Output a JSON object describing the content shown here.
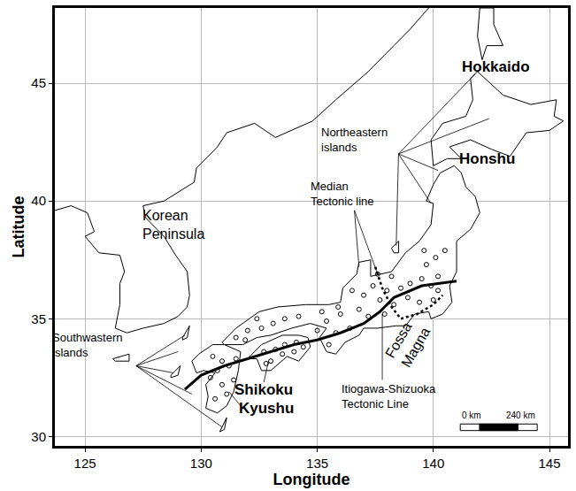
{
  "chart_data": {
    "type": "map",
    "x_label": "Longitude",
    "y_label": "Latitude",
    "xlim": [
      123.7,
      145.8
    ],
    "ylim": [
      29.6,
      48.2
    ],
    "xticks": [
      125,
      130,
      135,
      140,
      145
    ],
    "yticks": [
      30,
      35,
      40,
      45
    ],
    "grid": true,
    "mainland_coast": [
      {
        "lon": [
          123.7,
          124.4,
          125.1,
          125.4,
          125.0,
          125.6,
          126.5,
          126.7,
          126.5,
          126.5,
          126.3,
          126.8,
          127.5,
          128.4,
          129.0,
          129.4,
          129.5,
          129.4,
          128.9,
          128.4,
          127.6,
          127.5,
          128.4,
          129.7,
          129.8,
          130.7,
          131.1,
          132.3,
          133.2,
          134.8,
          135.8,
          137.2,
          138.3,
          139.0,
          139.8
        ],
        "lat": [
          39.6,
          39.8,
          39.5,
          38.7,
          38.5,
          37.8,
          37.7,
          37.0,
          36.5,
          35.6,
          34.6,
          34.4,
          34.6,
          34.8,
          35.1,
          35.5,
          36.0,
          37.0,
          37.7,
          38.5,
          39.3,
          39.8,
          40.0,
          40.8,
          41.4,
          42.3,
          42.9,
          43.3,
          42.7,
          43.4,
          44.3,
          45.5,
          46.6,
          47.3,
          48.2
        ]
      }
    ],
    "islands": [
      {
        "lon": [
          130.9,
          131.5,
          132.5,
          133.3,
          134.5,
          135.5,
          136.0,
          136.1,
          136.7,
          136.8,
          137.3,
          137.3,
          138.2,
          138.8,
          139.4,
          139.9,
          140.0,
          139.7,
          140.0,
          140.3,
          140.9,
          141.2,
          141.4,
          141.8,
          142.0,
          141.6,
          141.0,
          141.0,
          140.7,
          140.8,
          140.4,
          139.9,
          139.8,
          139.2,
          138.8,
          138.4,
          137.6,
          137.0,
          136.8,
          136.2,
          135.8,
          135.4,
          135.1,
          135.4,
          134.7,
          133.9,
          133.0,
          132.4,
          131.8,
          131.0,
          130.9
        ],
        "lat": [
          34.0,
          34.6,
          35.3,
          35.5,
          35.6,
          35.6,
          35.7,
          36.3,
          36.9,
          37.4,
          37.5,
          36.8,
          37.0,
          37.8,
          38.3,
          39.0,
          39.9,
          40.0,
          40.7,
          41.2,
          41.5,
          41.2,
          40.6,
          40.2,
          39.5,
          38.8,
          38.3,
          37.0,
          36.4,
          35.7,
          35.2,
          35.0,
          35.3,
          35.2,
          34.7,
          34.7,
          34.6,
          34.6,
          34.3,
          34.0,
          33.5,
          33.6,
          34.2,
          34.6,
          34.8,
          34.6,
          34.3,
          34.2,
          33.9,
          33.9,
          34.0
        ]
      },
      {
        "lon": [
          129.9,
          130.5,
          131.0,
          131.7,
          131.6,
          131.4,
          131.1,
          130.7,
          130.2,
          130.3,
          130.2,
          130.6,
          130.1,
          129.8,
          129.6,
          129.9
        ],
        "lat": [
          33.5,
          33.9,
          33.9,
          33.6,
          32.8,
          31.9,
          31.3,
          31.0,
          31.2,
          31.7,
          32.2,
          32.7,
          32.8,
          32.7,
          33.2,
          33.5
        ]
      },
      {
        "lon": [
          132.6,
          133.5,
          134.2,
          134.6,
          134.7,
          134.2,
          133.7,
          133.0,
          132.6,
          132.4,
          132.0,
          132.6
        ],
        "lat": [
          33.9,
          34.3,
          34.3,
          34.2,
          33.8,
          33.2,
          33.4,
          32.8,
          32.8,
          33.3,
          33.3,
          33.9
        ]
      },
      {
        "lon": [
          140.0,
          140.6,
          141.2,
          140.7,
          141.6,
          142.5,
          143.3,
          144.0,
          145.0,
          145.6,
          145.2,
          145.3,
          144.2,
          143.0,
          141.9,
          141.6,
          141.7,
          141.4,
          140.4,
          139.9,
          140.0
        ],
        "lat": [
          41.5,
          41.8,
          41.8,
          42.3,
          42.6,
          42.2,
          41.9,
          42.9,
          43.0,
          43.4,
          43.6,
          44.3,
          44.1,
          44.5,
          45.5,
          45.2,
          44.3,
          43.6,
          43.3,
          42.6,
          41.5
        ]
      },
      {
        "lon": [
          142.0,
          141.9,
          142.1,
          142.3,
          143.0,
          142.6,
          142.6,
          142.0
        ],
        "lat": [
          48.2,
          47.0,
          46.0,
          46.6,
          46.6,
          47.5,
          48.2,
          48.2
        ]
      },
      {
        "lon": [
          138.2,
          138.5,
          138.5,
          138.3,
          138.2
        ],
        "lat": [
          38.0,
          38.3,
          37.8,
          37.8,
          38.0
        ]
      },
      {
        "lon": [
          126.2,
          126.9,
          126.9,
          126.3,
          126.2
        ],
        "lat": [
          33.3,
          33.5,
          33.2,
          33.2,
          33.3
        ]
      },
      {
        "lon": [
          129.2,
          129.5,
          129.4,
          129.2,
          129.2
        ],
        "lat": [
          34.2,
          34.7,
          34.2,
          34.1,
          34.2
        ]
      },
      {
        "lon": [
          128.7,
          129.1,
          129.0,
          128.7,
          128.7
        ],
        "lat": [
          32.6,
          33.0,
          32.6,
          32.5,
          32.6
        ]
      },
      {
        "lon": [
          130.9,
          131.1,
          131.0,
          130.8,
          130.9
        ],
        "lat": [
          30.4,
          30.8,
          30.3,
          30.2,
          30.4
        ]
      }
    ],
    "tectonic_lines": [
      {
        "line_style": "solid",
        "lon": [
          129.3,
          130.0,
          131.0,
          132.0,
          133.0,
          134.0,
          135.0,
          136.0,
          137.0,
          137.7,
          138.3,
          139.5,
          141.0
        ],
        "lat": [
          32.0,
          32.6,
          33.0,
          33.3,
          33.6,
          33.9,
          34.1,
          34.4,
          34.8,
          35.3,
          35.9,
          36.4,
          36.6
        ]
      },
      {
        "line_style": "dotted",
        "lon": [
          137.5,
          137.8,
          138.2,
          138.6
        ],
        "lat": [
          37.2,
          36.3,
          35.5,
          35.0
        ]
      },
      {
        "line_style": "dotted",
        "lon": [
          138.6,
          139.3,
          140.0,
          140.4
        ],
        "lat": [
          35.0,
          35.2,
          35.6,
          36.0
        ]
      }
    ],
    "sample_sites": {
      "marker": "circle-open",
      "lon": [
        130.5,
        130.9,
        131.2,
        130.7,
        131.4,
        130.9,
        131.1,
        130.6,
        130.4,
        131.5,
        132.7,
        133.2,
        133.6,
        134.1,
        134.4,
        133.0,
        133.5,
        132.8,
        134.0,
        131.5,
        132.0,
        132.6,
        133.1,
        133.6,
        134.2,
        132.4,
        131.9,
        135.0,
        135.4,
        135.8,
        135.5,
        136.0,
        136.4,
        135.9,
        135.2,
        136.8,
        137.2,
        137.0,
        137.4,
        137.7,
        138.0,
        137.6,
        138.3,
        138.6,
        138.2,
        139.0,
        138.9,
        136.5,
        137.9,
        139.5,
        139.9,
        140.2,
        139.7,
        140.1,
        140.5,
        139.6,
        140.2,
        139.4,
        140.0
      ],
      "lat": [
        33.4,
        33.2,
        33.0,
        32.8,
        32.4,
        32.2,
        31.8,
        31.6,
        32.5,
        33.3,
        33.6,
        33.7,
        33.9,
        34.0,
        33.8,
        33.2,
        33.5,
        33.1,
        33.6,
        34.2,
        34.5,
        34.6,
        34.8,
        35.0,
        35.1,
        35.0,
        34.1,
        34.5,
        34.9,
        34.4,
        33.9,
        35.2,
        34.6,
        35.5,
        35.3,
        35.4,
        35.1,
        36.0,
        36.4,
        35.8,
        36.2,
        36.9,
        35.6,
        36.3,
        36.8,
        36.5,
        35.9,
        36.2,
        35.2,
        36.7,
        36.4,
        36.8,
        37.3,
        37.6,
        37.9,
        37.9,
        36.2,
        35.7,
        35.8
      ]
    },
    "region_labels": [
      {
        "lines": [
          "Hokkaido"
        ],
        "lon": 142.7,
        "lat": 45.7,
        "pointer_from": null,
        "targets": []
      },
      {
        "lines": [
          "Honshu"
        ],
        "lon": 142.3,
        "lat": 41.8,
        "pointer_from": null,
        "targets": []
      },
      {
        "lines": [
          "Shikoku"
        ],
        "lon": 132.7,
        "lat": 32.0,
        "pointer_from": [
          132.7,
          32.3
        ],
        "targets": [
          [
            132.9,
            33.2
          ]
        ]
      },
      {
        "lines": [
          "Kyushu"
        ],
        "lon": 132.8,
        "lat": 31.2,
        "pointer_from": [
          131.7,
          31.3
        ],
        "targets": [
          [
            131.2,
            31.9
          ]
        ]
      }
    ],
    "feature_labels": [
      {
        "lines": [
          "Korean",
          "Peninsula"
        ],
        "lon": 128.8,
        "lat": 39.0,
        "pointer_from": null,
        "targets": []
      },
      {
        "lines": [
          "Northeastern",
          "islands"
        ],
        "lon": 136.6,
        "lat": 42.6,
        "pointer_from": [
          138.5,
          42.0
        ],
        "targets": [
          [
            141.8,
            45.4
          ],
          [
            142.4,
            43.5
          ],
          [
            140.2,
            41.3
          ],
          [
            139.9,
            39.9
          ],
          [
            138.4,
            38.1
          ]
        ]
      },
      {
        "lines": [
          "Median",
          "Tectonic line"
        ],
        "lon": 136.1,
        "lat": 40.3,
        "pointer_from": [
          136.6,
          39.6
        ],
        "targets": [
          [
            136.8,
            37.2
          ],
          [
            137.6,
            36.9
          ]
        ]
      },
      {
        "lines": [
          "Itiogawa-Shizuoka",
          "Tectonic Line"
        ],
        "lon": 138.1,
        "lat": 31.7,
        "pointer_from": [
          137.8,
          32.4
        ],
        "targets": [
          [
            137.8,
            35.2
          ]
        ]
      },
      {
        "lines": [
          "Southwastern",
          "islands"
        ],
        "lon": 125.1,
        "lat": 33.9,
        "pointer_from": [
          127.2,
          33.0
        ],
        "targets": [
          [
            129.3,
            34.3
          ],
          [
            129.0,
            33.6
          ],
          [
            128.8,
            32.7
          ],
          [
            129.6,
            31.8
          ],
          [
            130.9,
            30.4
          ]
        ]
      }
    ],
    "slanted_labels": [
      {
        "lines": [
          "Fossa",
          "Magna"
        ],
        "lon": 138.9,
        "lat": 34.0
      }
    ],
    "scale_bar": {
      "labels": [
        "0 km",
        "240 km"
      ]
    }
  }
}
